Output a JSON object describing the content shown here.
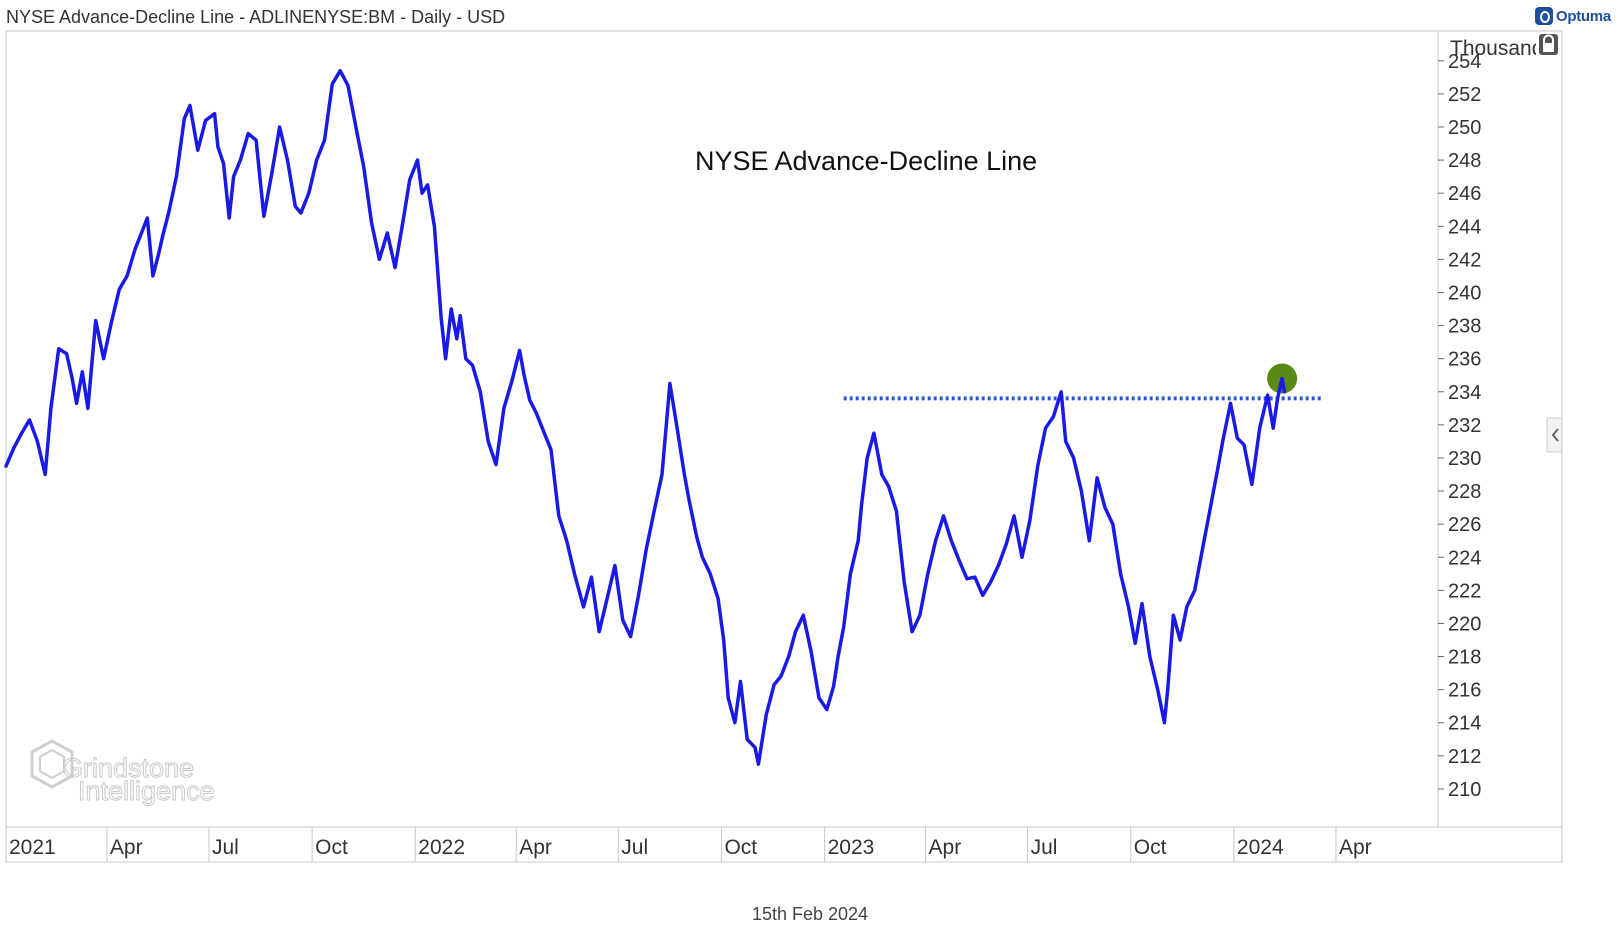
{
  "header": {
    "title": "NYSE Advance-Decline Line - ADLINENYSE:BM - Daily - USD",
    "brand": "Optuma"
  },
  "footer": {
    "date": "15th Feb 2024"
  },
  "watermark": {
    "line1": "Grindstone",
    "line2": "Intelligence"
  },
  "chart_data": {
    "type": "line",
    "annotation": "NYSE Advance-Decline Line",
    "ylabel": "Thousand",
    "ylim": [
      207.7,
      255.8
    ],
    "y_ticks": [
      210,
      212,
      214,
      216,
      218,
      220,
      222,
      224,
      226,
      228,
      230,
      232,
      234,
      236,
      238,
      240,
      242,
      244,
      246,
      248,
      250,
      252,
      254
    ],
    "y_tick_labels": [
      "210",
      "212",
      "214",
      "216",
      "218",
      "220",
      "222",
      "224",
      "226",
      "228",
      "230",
      "232",
      "234",
      "236",
      "238",
      "240",
      "242",
      "244",
      "246",
      "248",
      "250",
      "252",
      "254"
    ],
    "x_ticks": [
      {
        "label": "2021",
        "x": "2021-01-01"
      },
      {
        "label": "Apr",
        "x": "2021-04-01"
      },
      {
        "label": "Jul",
        "x": "2021-07-01"
      },
      {
        "label": "Oct",
        "x": "2021-10-01"
      },
      {
        "label": "2022",
        "x": "2022-01-01"
      },
      {
        "label": "Apr",
        "x": "2022-04-01"
      },
      {
        "label": "Jul",
        "x": "2022-07-01"
      },
      {
        "label": "Oct",
        "x": "2022-10-01"
      },
      {
        "label": "2023",
        "x": "2023-01-01"
      },
      {
        "label": "Apr",
        "x": "2023-04-01"
      },
      {
        "label": "Jul",
        "x": "2023-07-01"
      },
      {
        "label": "Oct",
        "x": "2023-10-01"
      },
      {
        "label": "2024",
        "x": "2024-01-01"
      },
      {
        "label": "Apr",
        "x": "2024-04-01"
      }
    ],
    "xlim": [
      "2021-01-01",
      "2024-07-01"
    ],
    "series": [
      {
        "color": "#1a1ae6",
        "points": [
          [
            "2021-01-01",
            229.5
          ],
          [
            "2021-01-08",
            230.6
          ],
          [
            "2021-01-15",
            231.5
          ],
          [
            "2021-01-22",
            232.3
          ],
          [
            "2021-01-29",
            231.0
          ],
          [
            "2021-02-05",
            229.0
          ],
          [
            "2021-02-10",
            233.0
          ],
          [
            "2021-02-17",
            236.6
          ],
          [
            "2021-02-24",
            236.3
          ],
          [
            "2021-03-01",
            234.8
          ],
          [
            "2021-03-05",
            233.3
          ],
          [
            "2021-03-10",
            235.2
          ],
          [
            "2021-03-15",
            233.0
          ],
          [
            "2021-03-22",
            238.3
          ],
          [
            "2021-03-29",
            236.0
          ],
          [
            "2021-04-05",
            238.2
          ],
          [
            "2021-04-12",
            240.2
          ],
          [
            "2021-04-19",
            241.0
          ],
          [
            "2021-04-26",
            242.6
          ],
          [
            "2021-05-03",
            243.8
          ],
          [
            "2021-05-07",
            244.5
          ],
          [
            "2021-05-12",
            241.0
          ],
          [
            "2021-05-17",
            242.3
          ],
          [
            "2021-05-21",
            243.5
          ],
          [
            "2021-05-26",
            244.8
          ],
          [
            "2021-06-02",
            247.0
          ],
          [
            "2021-06-09",
            250.5
          ],
          [
            "2021-06-14",
            251.3
          ],
          [
            "2021-06-21",
            248.6
          ],
          [
            "2021-06-28",
            250.4
          ],
          [
            "2021-07-06",
            250.8
          ],
          [
            "2021-07-09",
            248.8
          ],
          [
            "2021-07-14",
            247.8
          ],
          [
            "2021-07-19",
            244.5
          ],
          [
            "2021-07-23",
            247.0
          ],
          [
            "2021-07-29",
            248.0
          ],
          [
            "2021-08-05",
            249.6
          ],
          [
            "2021-08-12",
            249.2
          ],
          [
            "2021-08-19",
            244.6
          ],
          [
            "2021-08-26",
            247.2
          ],
          [
            "2021-09-02",
            250.0
          ],
          [
            "2021-09-09",
            248.0
          ],
          [
            "2021-09-16",
            245.2
          ],
          [
            "2021-09-21",
            244.8
          ],
          [
            "2021-09-28",
            246.0
          ],
          [
            "2021-10-05",
            248.0
          ],
          [
            "2021-10-12",
            249.2
          ],
          [
            "2021-10-19",
            252.6
          ],
          [
            "2021-10-26",
            253.4
          ],
          [
            "2021-11-02",
            252.5
          ],
          [
            "2021-11-09",
            250.0
          ],
          [
            "2021-11-16",
            247.6
          ],
          [
            "2021-11-23",
            244.2
          ],
          [
            "2021-11-30",
            242.0
          ],
          [
            "2021-12-07",
            243.6
          ],
          [
            "2021-12-14",
            241.5
          ],
          [
            "2021-12-21",
            244.3
          ],
          [
            "2021-12-27",
            246.8
          ],
          [
            "2022-01-03",
            248.0
          ],
          [
            "2022-01-07",
            246.0
          ],
          [
            "2022-01-12",
            246.5
          ],
          [
            "2022-01-18",
            244.0
          ],
          [
            "2022-01-24",
            238.5
          ],
          [
            "2022-01-28",
            236.0
          ],
          [
            "2022-02-02",
            239.0
          ],
          [
            "2022-02-07",
            237.2
          ],
          [
            "2022-02-10",
            238.6
          ],
          [
            "2022-02-15",
            236.0
          ],
          [
            "2022-02-21",
            235.6
          ],
          [
            "2022-02-28",
            234.0
          ],
          [
            "2022-03-07",
            231.0
          ],
          [
            "2022-03-14",
            229.6
          ],
          [
            "2022-03-21",
            233.0
          ],
          [
            "2022-03-28",
            234.6
          ],
          [
            "2022-04-04",
            236.5
          ],
          [
            "2022-04-08",
            235.0
          ],
          [
            "2022-04-13",
            233.5
          ],
          [
            "2022-04-19",
            232.7
          ],
          [
            "2022-04-26",
            231.5
          ],
          [
            "2022-05-02",
            230.5
          ],
          [
            "2022-05-09",
            226.5
          ],
          [
            "2022-05-16",
            225.0
          ],
          [
            "2022-05-23",
            223.0
          ],
          [
            "2022-05-31",
            221.0
          ],
          [
            "2022-06-07",
            222.8
          ],
          [
            "2022-06-14",
            219.5
          ],
          [
            "2022-06-21",
            221.5
          ],
          [
            "2022-06-28",
            223.5
          ],
          [
            "2022-07-05",
            220.2
          ],
          [
            "2022-07-12",
            219.2
          ],
          [
            "2022-07-19",
            221.7
          ],
          [
            "2022-07-26",
            224.5
          ],
          [
            "2022-08-02",
            226.8
          ],
          [
            "2022-08-09",
            229.0
          ],
          [
            "2022-08-16",
            234.5
          ],
          [
            "2022-08-22",
            232.0
          ],
          [
            "2022-08-29",
            229.0
          ],
          [
            "2022-09-02",
            227.5
          ],
          [
            "2022-09-09",
            225.2
          ],
          [
            "2022-09-14",
            224.0
          ],
          [
            "2022-09-21",
            223.0
          ],
          [
            "2022-09-28",
            221.5
          ],
          [
            "2022-10-03",
            219.0
          ],
          [
            "2022-10-07",
            215.5
          ],
          [
            "2022-10-13",
            214.0
          ],
          [
            "2022-10-18",
            216.5
          ],
          [
            "2022-10-24",
            213.0
          ],
          [
            "2022-10-31",
            212.5
          ],
          [
            "2022-11-03",
            211.5
          ],
          [
            "2022-11-10",
            214.5
          ],
          [
            "2022-11-17",
            216.3
          ],
          [
            "2022-11-23",
            216.8
          ],
          [
            "2022-11-30",
            218.0
          ],
          [
            "2022-12-06",
            219.5
          ],
          [
            "2022-12-13",
            220.5
          ],
          [
            "2022-12-20",
            218.3
          ],
          [
            "2022-12-27",
            215.5
          ],
          [
            "2023-01-03",
            214.8
          ],
          [
            "2023-01-09",
            216.2
          ],
          [
            "2023-01-13",
            218.0
          ],
          [
            "2023-01-18",
            219.8
          ],
          [
            "2023-01-24",
            223.0
          ],
          [
            "2023-01-31",
            225.0
          ],
          [
            "2023-02-03",
            227.2
          ],
          [
            "2023-02-08",
            230.0
          ],
          [
            "2023-02-14",
            231.5
          ],
          [
            "2023-02-21",
            229.0
          ],
          [
            "2023-02-27",
            228.3
          ],
          [
            "2023-03-06",
            226.8
          ],
          [
            "2023-03-13",
            222.5
          ],
          [
            "2023-03-20",
            219.5
          ],
          [
            "2023-03-27",
            220.5
          ],
          [
            "2023-04-03",
            223.0
          ],
          [
            "2023-04-10",
            225.0
          ],
          [
            "2023-04-17",
            226.5
          ],
          [
            "2023-04-24",
            225.0
          ],
          [
            "2023-05-01",
            223.8
          ],
          [
            "2023-05-08",
            222.7
          ],
          [
            "2023-05-15",
            222.8
          ],
          [
            "2023-05-22",
            221.7
          ],
          [
            "2023-05-29",
            222.5
          ],
          [
            "2023-06-05",
            223.5
          ],
          [
            "2023-06-12",
            224.8
          ],
          [
            "2023-06-19",
            226.5
          ],
          [
            "2023-06-26",
            224.0
          ],
          [
            "2023-07-03",
            226.2
          ],
          [
            "2023-07-10",
            229.5
          ],
          [
            "2023-07-17",
            231.8
          ],
          [
            "2023-07-24",
            232.5
          ],
          [
            "2023-07-31",
            234.0
          ],
          [
            "2023-08-04",
            231.0
          ],
          [
            "2023-08-11",
            230.0
          ],
          [
            "2023-08-18",
            228.0
          ],
          [
            "2023-08-25",
            225.0
          ],
          [
            "2023-09-01",
            228.8
          ],
          [
            "2023-09-08",
            227.0
          ],
          [
            "2023-09-15",
            226.0
          ],
          [
            "2023-09-22",
            223.0
          ],
          [
            "2023-09-29",
            221.0
          ],
          [
            "2023-10-05",
            218.8
          ],
          [
            "2023-10-11",
            221.2
          ],
          [
            "2023-10-18",
            218.0
          ],
          [
            "2023-10-25",
            216.0
          ],
          [
            "2023-10-31",
            214.0
          ],
          [
            "2023-11-03",
            216.0
          ],
          [
            "2023-11-08",
            220.5
          ],
          [
            "2023-11-14",
            219.0
          ],
          [
            "2023-11-20",
            221.0
          ],
          [
            "2023-11-27",
            222.0
          ],
          [
            "2023-12-04",
            224.5
          ],
          [
            "2023-12-11",
            227.0
          ],
          [
            "2023-12-18",
            229.5
          ],
          [
            "2023-12-22",
            231.0
          ],
          [
            "2023-12-29",
            233.3
          ],
          [
            "2024-01-04",
            231.2
          ],
          [
            "2024-01-10",
            230.8
          ],
          [
            "2024-01-17",
            228.4
          ],
          [
            "2024-01-24",
            231.8
          ],
          [
            "2024-01-31",
            233.8
          ],
          [
            "2024-02-05",
            231.8
          ],
          [
            "2024-02-09",
            233.6
          ],
          [
            "2024-02-13",
            234.8
          ],
          [
            "2024-02-15",
            234.0
          ]
        ]
      }
    ],
    "resistance_level": 233.6,
    "resistance_start": "2023-01-18",
    "resistance_end": "2024-03-20",
    "highlight_point": [
      "2024-02-13",
      234.8
    ],
    "colors": {
      "line": "#1a1ae6",
      "resistance": "#2f56d8",
      "highlight": "#5a8a14"
    }
  }
}
